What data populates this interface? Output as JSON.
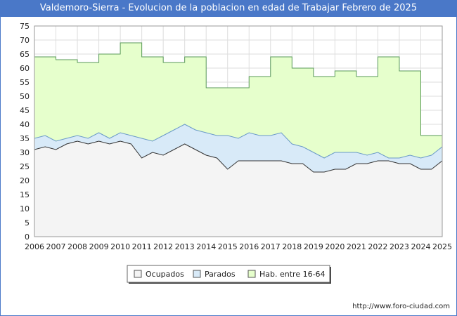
{
  "chart_data": {
    "type": "area",
    "title": "Valdemoro-Sierra - Evolucion de la poblacion en edad de Trabajar Febrero de 2025",
    "xlabel": "",
    "ylabel": "",
    "ylim": [
      0,
      75
    ],
    "yticks": [
      "0",
      "5",
      "10",
      "15",
      "20",
      "25",
      "30",
      "35",
      "40",
      "45",
      "50",
      "55",
      "60",
      "65",
      "70",
      "75"
    ],
    "xticks": [
      "2006",
      "2007",
      "2008",
      "2009",
      "2010",
      "2011",
      "2012",
      "2013",
      "2014",
      "2015",
      "2016",
      "2017",
      "2018",
      "2019",
      "2020",
      "2021",
      "2022",
      "2023",
      "2024",
      "2025"
    ],
    "grid": true,
    "legend_position": "bottom",
    "series": [
      {
        "name": "Hab. entre 16-64",
        "color": "#e6ffcc",
        "line_color": "#5a9a5a",
        "points": [
          [
            2006,
            64
          ],
          [
            2007,
            63
          ],
          [
            2008,
            62
          ],
          [
            2009,
            65
          ],
          [
            2010,
            69
          ],
          [
            2011,
            64
          ],
          [
            2012,
            62
          ],
          [
            2013,
            64
          ],
          [
            2014,
            53
          ],
          [
            2015,
            53
          ],
          [
            2016,
            57
          ],
          [
            2017,
            64
          ],
          [
            2018,
            60
          ],
          [
            2019,
            57
          ],
          [
            2020,
            59
          ],
          [
            2021,
            57
          ],
          [
            2022,
            64
          ],
          [
            2023,
            59
          ],
          [
            2024,
            36
          ],
          [
            2025,
            36
          ]
        ]
      },
      {
        "name": "Parados",
        "color": "#d8eaf8",
        "line_color": "#6a9ac8",
        "points": [
          [
            2006.0,
            35
          ],
          [
            2006.5,
            36
          ],
          [
            2007.0,
            34
          ],
          [
            2007.5,
            35
          ],
          [
            2008.0,
            36
          ],
          [
            2008.5,
            35
          ],
          [
            2009.0,
            37
          ],
          [
            2009.5,
            35
          ],
          [
            2010.0,
            37
          ],
          [
            2010.5,
            36
          ],
          [
            2011.0,
            35
          ],
          [
            2011.5,
            34
          ],
          [
            2012.0,
            36
          ],
          [
            2012.5,
            38
          ],
          [
            2013.0,
            40
          ],
          [
            2013.5,
            38
          ],
          [
            2014.0,
            37
          ],
          [
            2014.5,
            36
          ],
          [
            2015.0,
            36
          ],
          [
            2015.5,
            35
          ],
          [
            2016.0,
            37
          ],
          [
            2016.5,
            36
          ],
          [
            2017.0,
            36
          ],
          [
            2017.5,
            37
          ],
          [
            2018.0,
            33
          ],
          [
            2018.5,
            32
          ],
          [
            2019.0,
            30
          ],
          [
            2019.5,
            28
          ],
          [
            2020.0,
            30
          ],
          [
            2020.5,
            30
          ],
          [
            2021.0,
            30
          ],
          [
            2021.5,
            29
          ],
          [
            2022.0,
            30
          ],
          [
            2022.5,
            28
          ],
          [
            2023.0,
            28
          ],
          [
            2023.5,
            29
          ],
          [
            2024.0,
            28
          ],
          [
            2024.5,
            29
          ],
          [
            2025.0,
            32
          ]
        ]
      },
      {
        "name": "Ocupados",
        "color": "#f4f4f4",
        "line_color": "#333333",
        "points": [
          [
            2006.0,
            31
          ],
          [
            2006.5,
            32
          ],
          [
            2007.0,
            31
          ],
          [
            2007.5,
            33
          ],
          [
            2008.0,
            34
          ],
          [
            2008.5,
            33
          ],
          [
            2009.0,
            34
          ],
          [
            2009.5,
            33
          ],
          [
            2010.0,
            34
          ],
          [
            2010.5,
            33
          ],
          [
            2011.0,
            28
          ],
          [
            2011.5,
            30
          ],
          [
            2012.0,
            29
          ],
          [
            2012.5,
            31
          ],
          [
            2013.0,
            33
          ],
          [
            2013.5,
            31
          ],
          [
            2014.0,
            29
          ],
          [
            2014.5,
            28
          ],
          [
            2015.0,
            24
          ],
          [
            2015.5,
            27
          ],
          [
            2016.0,
            27
          ],
          [
            2016.5,
            27
          ],
          [
            2017.0,
            27
          ],
          [
            2017.5,
            27
          ],
          [
            2018.0,
            26
          ],
          [
            2018.5,
            26
          ],
          [
            2019.0,
            23
          ],
          [
            2019.5,
            23
          ],
          [
            2020.0,
            24
          ],
          [
            2020.5,
            24
          ],
          [
            2021.0,
            26
          ],
          [
            2021.5,
            26
          ],
          [
            2022.0,
            27
          ],
          [
            2022.5,
            27
          ],
          [
            2023.0,
            26
          ],
          [
            2023.5,
            26
          ],
          [
            2024.0,
            24
          ],
          [
            2024.5,
            24
          ],
          [
            2025.0,
            27
          ]
        ]
      }
    ]
  },
  "legend": {
    "items": [
      "Ocupados",
      "Parados",
      "Hab. entre 16-64"
    ]
  },
  "footer": {
    "source": "http://www.foro-ciudad.com"
  }
}
